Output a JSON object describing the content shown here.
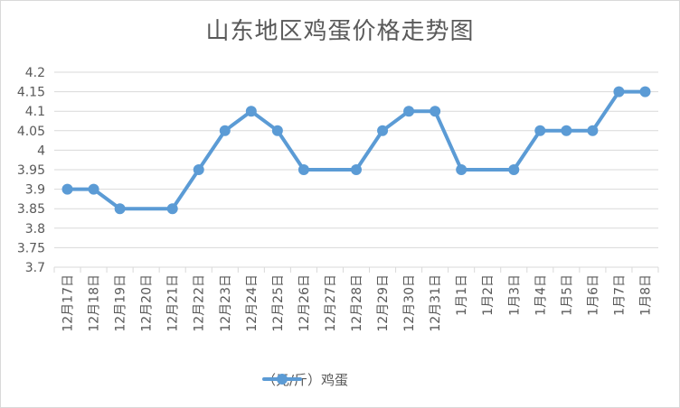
{
  "chart_data": {
    "type": "line",
    "title": "山东地区鸡蛋价格走势图",
    "categories": [
      "12月17日",
      "12月18日",
      "12月19日",
      "12月20日",
      "12月21日",
      "12月22日",
      "12月23日",
      "12月24日",
      "12月25日",
      "12月26日",
      "12月27日",
      "12月28日",
      "12月29日",
      "12月30日",
      "12月31日",
      "1月1日",
      "1月2日",
      "1月3日",
      "1月4日",
      "1月5日",
      "1月6日",
      "1月7日",
      "1月8日"
    ],
    "series": [
      {
        "name": "（元/斤）鸡蛋",
        "values": [
          3.9,
          3.9,
          3.85,
          null,
          3.85,
          3.95,
          4.05,
          4.1,
          4.05,
          3.95,
          null,
          3.95,
          4.05,
          4.1,
          4.1,
          3.95,
          null,
          3.95,
          4.05,
          4.05,
          4.05,
          4.15,
          4.15
        ],
        "color": "#5b9bd5"
      }
    ],
    "ylim": [
      3.7,
      4.2
    ],
    "yticks": [
      "3.7",
      "3.75",
      "3.8",
      "3.85",
      "3.9",
      "3.95",
      "4",
      "4.05",
      "4.1",
      "4.15",
      "4.2"
    ],
    "grid": true,
    "legend": "bottom"
  }
}
